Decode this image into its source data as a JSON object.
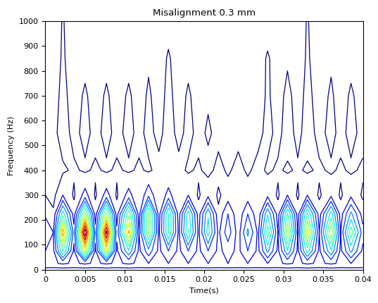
{
  "chart_data": {
    "type": "contour",
    "title": "Misalignment 0.3 mm",
    "x_label": "Time(s)",
    "y_label": "Frequency (Hz)",
    "x": [
      0.0,
      0.001,
      0.0022,
      0.0036,
      0.005,
      0.0063,
      0.0077,
      0.009,
      0.0105,
      0.0118,
      0.013,
      0.0143,
      0.0155,
      0.0168,
      0.018,
      0.0193,
      0.0205,
      0.0218,
      0.023,
      0.0243,
      0.0255,
      0.0268,
      0.028,
      0.0293,
      0.0305,
      0.0318,
      0.033,
      0.0345,
      0.036,
      0.0372,
      0.0385,
      0.04
    ],
    "y": [
      0,
      25,
      75,
      150,
      225,
      300,
      400,
      550,
      700,
      850,
      1000
    ],
    "cells": [
      [
        0.02,
        0.02,
        0.02,
        0.02,
        0.02,
        0.02,
        0.02,
        0.02,
        0.02,
        0.02,
        0.02,
        0.02,
        0.02,
        0.02,
        0.02,
        0.02,
        0.02,
        0.02,
        0.02,
        0.02,
        0.02,
        0.02,
        0.02,
        0.02,
        0.02,
        0.02,
        0.02,
        0.02,
        0.02,
        0.02,
        0.02,
        0.02
      ],
      [
        0.12,
        0.11,
        0.13,
        0.11,
        0.13,
        0.11,
        0.13,
        0.11,
        0.13,
        0.11,
        0.12,
        0.11,
        0.12,
        0.11,
        0.12,
        0.11,
        0.12,
        0.11,
        0.12,
        0.11,
        0.12,
        0.11,
        0.12,
        0.11,
        0.13,
        0.11,
        0.13,
        0.11,
        0.13,
        0.11,
        0.12,
        0.11
      ],
      [
        0.12,
        0.1,
        0.45,
        0.1,
        0.6,
        0.1,
        0.6,
        0.1,
        0.35,
        0.1,
        0.25,
        0.1,
        0.2,
        0.1,
        0.2,
        0.1,
        0.2,
        0.1,
        0.15,
        0.1,
        0.2,
        0.1,
        0.3,
        0.1,
        0.35,
        0.1,
        0.4,
        0.1,
        0.35,
        0.1,
        0.3,
        0.1
      ],
      [
        0.2,
        0.12,
        0.75,
        0.15,
        1.0,
        0.15,
        0.95,
        0.14,
        0.7,
        0.12,
        0.55,
        0.1,
        0.45,
        0.1,
        0.45,
        0.1,
        0.4,
        0.1,
        0.25,
        0.08,
        0.3,
        0.1,
        0.5,
        0.12,
        0.6,
        0.12,
        0.65,
        0.12,
        0.6,
        0.12,
        0.5,
        0.15
      ],
      [
        0.1,
        0.06,
        0.4,
        0.08,
        0.55,
        0.08,
        0.55,
        0.08,
        0.5,
        0.08,
        0.55,
        0.08,
        0.45,
        0.08,
        0.4,
        0.08,
        0.35,
        0.06,
        0.2,
        0.06,
        0.2,
        0.06,
        0.35,
        0.08,
        0.45,
        0.08,
        0.45,
        0.08,
        0.4,
        0.08,
        0.3,
        0.08
      ],
      [
        0.05,
        0.03,
        0.12,
        0.04,
        0.15,
        0.04,
        0.15,
        0.04,
        0.15,
        0.05,
        0.18,
        0.05,
        0.15,
        0.05,
        0.12,
        0.04,
        0.1,
        0.04,
        0.08,
        0.05,
        0.08,
        0.05,
        0.1,
        0.04,
        0.12,
        0.04,
        0.12,
        0.04,
        0.1,
        0.04,
        0.1,
        0.04
      ],
      [
        0.02,
        0.02,
        0.04,
        0.06,
        0.04,
        0.06,
        0.04,
        0.06,
        0.04,
        0.06,
        0.04,
        0.07,
        0.05,
        0.07,
        0.04,
        0.06,
        0.03,
        0.07,
        0.04,
        0.07,
        0.04,
        0.07,
        0.04,
        0.06,
        0.04,
        0.06,
        0.04,
        0.06,
        0.04,
        0.06,
        0.04,
        0.06
      ],
      [
        0.03,
        0.03,
        0.08,
        0.03,
        0.07,
        0.03,
        0.07,
        0.03,
        0.07,
        0.03,
        0.07,
        0.03,
        0.08,
        0.03,
        0.07,
        0.03,
        0.06,
        0.03,
        0.05,
        0.03,
        0.05,
        0.03,
        0.07,
        0.03,
        0.08,
        0.03,
        0.08,
        0.03,
        0.07,
        0.03,
        0.07,
        0.03
      ],
      [
        0.02,
        0.02,
        0.07,
        0.02,
        0.06,
        0.02,
        0.06,
        0.02,
        0.06,
        0.02,
        0.06,
        0.02,
        0.07,
        0.02,
        0.06,
        0.02,
        0.04,
        0.02,
        0.03,
        0.02,
        0.03,
        0.02,
        0.06,
        0.02,
        0.07,
        0.02,
        0.07,
        0.02,
        0.06,
        0.02,
        0.06,
        0.02
      ],
      [
        0.01,
        0.01,
        0.06,
        0.01,
        0.03,
        0.01,
        0.03,
        0.01,
        0.03,
        0.01,
        0.04,
        0.01,
        0.06,
        0.01,
        0.03,
        0.01,
        0.02,
        0.01,
        0.02,
        0.01,
        0.02,
        0.01,
        0.06,
        0.01,
        0.04,
        0.01,
        0.06,
        0.01,
        0.04,
        0.01,
        0.03,
        0.01
      ],
      [
        0.01,
        0.01,
        0.055,
        0.01,
        0.01,
        0.01,
        0.01,
        0.01,
        0.01,
        0.01,
        0.01,
        0.01,
        0.02,
        0.01,
        0.01,
        0.01,
        0.01,
        0.01,
        0.01,
        0.01,
        0.01,
        0.01,
        0.01,
        0.01,
        0.01,
        0.01,
        0.055,
        0.01,
        0.01,
        0.01,
        0.01,
        0.01
      ]
    ],
    "levels": [
      0.05,
      0.12,
      0.2,
      0.28,
      0.36,
      0.44,
      0.52,
      0.6,
      0.68,
      0.76,
      0.84,
      0.92
    ],
    "color": "jet",
    "xlim": [
      0,
      0.04
    ],
    "xticks": [
      0,
      0.005,
      0.01,
      0.015,
      0.02,
      0.025,
      0.03,
      0.035,
      0.04
    ],
    "ylim": [
      0,
      1000
    ],
    "yticks": [
      0,
      100,
      200,
      300,
      400,
      500,
      600,
      700,
      800,
      900,
      1000
    ]
  }
}
